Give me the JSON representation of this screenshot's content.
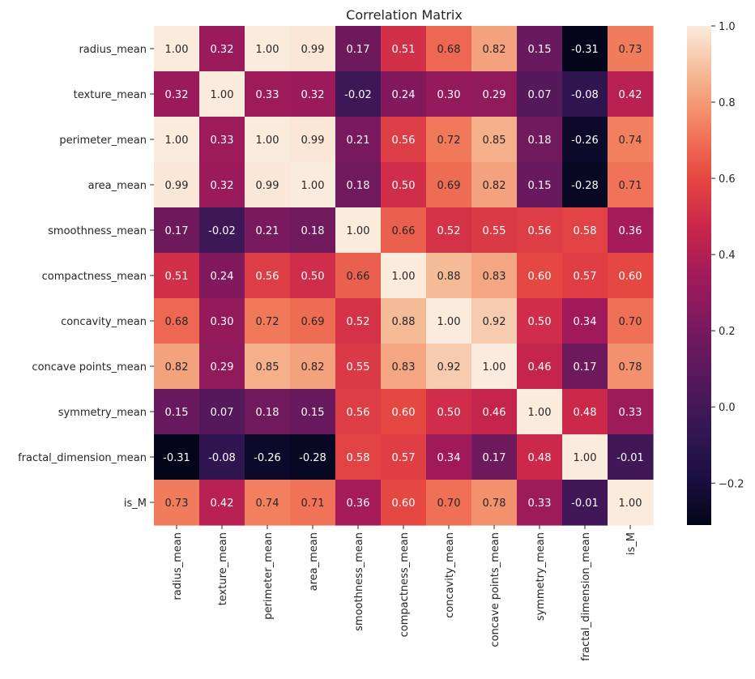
{
  "chart_data": {
    "type": "heatmap",
    "title": "Correlation Matrix",
    "xlabel": "",
    "ylabel": "",
    "labels": [
      "radius_mean",
      "texture_mean",
      "perimeter_mean",
      "area_mean",
      "smoothness_mean",
      "compactness_mean",
      "concavity_mean",
      "concave points_mean",
      "symmetry_mean",
      "fractal_dimension_mean",
      "is_M"
    ],
    "matrix": [
      [
        1.0,
        0.32,
        1.0,
        0.99,
        0.17,
        0.51,
        0.68,
        0.82,
        0.15,
        -0.31,
        0.73
      ],
      [
        0.32,
        1.0,
        0.33,
        0.32,
        -0.02,
        0.24,
        0.3,
        0.29,
        0.07,
        -0.08,
        0.42
      ],
      [
        1.0,
        0.33,
        1.0,
        0.99,
        0.21,
        0.56,
        0.72,
        0.85,
        0.18,
        -0.26,
        0.74
      ],
      [
        0.99,
        0.32,
        0.99,
        1.0,
        0.18,
        0.5,
        0.69,
        0.82,
        0.15,
        -0.28,
        0.71
      ],
      [
        0.17,
        -0.02,
        0.21,
        0.18,
        1.0,
        0.66,
        0.52,
        0.55,
        0.56,
        0.58,
        0.36
      ],
      [
        0.51,
        0.24,
        0.56,
        0.5,
        0.66,
        1.0,
        0.88,
        0.83,
        0.6,
        0.57,
        0.6
      ],
      [
        0.68,
        0.3,
        0.72,
        0.69,
        0.52,
        0.88,
        1.0,
        0.92,
        0.5,
        0.34,
        0.7
      ],
      [
        0.82,
        0.29,
        0.85,
        0.82,
        0.55,
        0.83,
        0.92,
        1.0,
        0.46,
        0.17,
        0.78
      ],
      [
        0.15,
        0.07,
        0.18,
        0.15,
        0.56,
        0.6,
        0.5,
        0.46,
        1.0,
        0.48,
        0.33
      ],
      [
        -0.31,
        -0.08,
        -0.26,
        -0.28,
        0.58,
        0.57,
        0.34,
        0.17,
        0.48,
        1.0,
        -0.01
      ],
      [
        0.73,
        0.42,
        0.74,
        0.71,
        0.36,
        0.6,
        0.7,
        0.78,
        0.33,
        -0.01,
        1.0
      ]
    ],
    "value_format": "0.00",
    "colorbar": {
      "range": [
        -0.31,
        1.0
      ],
      "ticks": [
        -0.2,
        0.0,
        0.2,
        0.4,
        0.6,
        0.8,
        1.0
      ],
      "tick_labels": [
        "−0.2",
        "0.0",
        "0.2",
        "0.4",
        "0.6",
        "0.8",
        "1.0"
      ],
      "colormap": "rocket"
    },
    "grid": false,
    "legend": "colorbar-right"
  }
}
